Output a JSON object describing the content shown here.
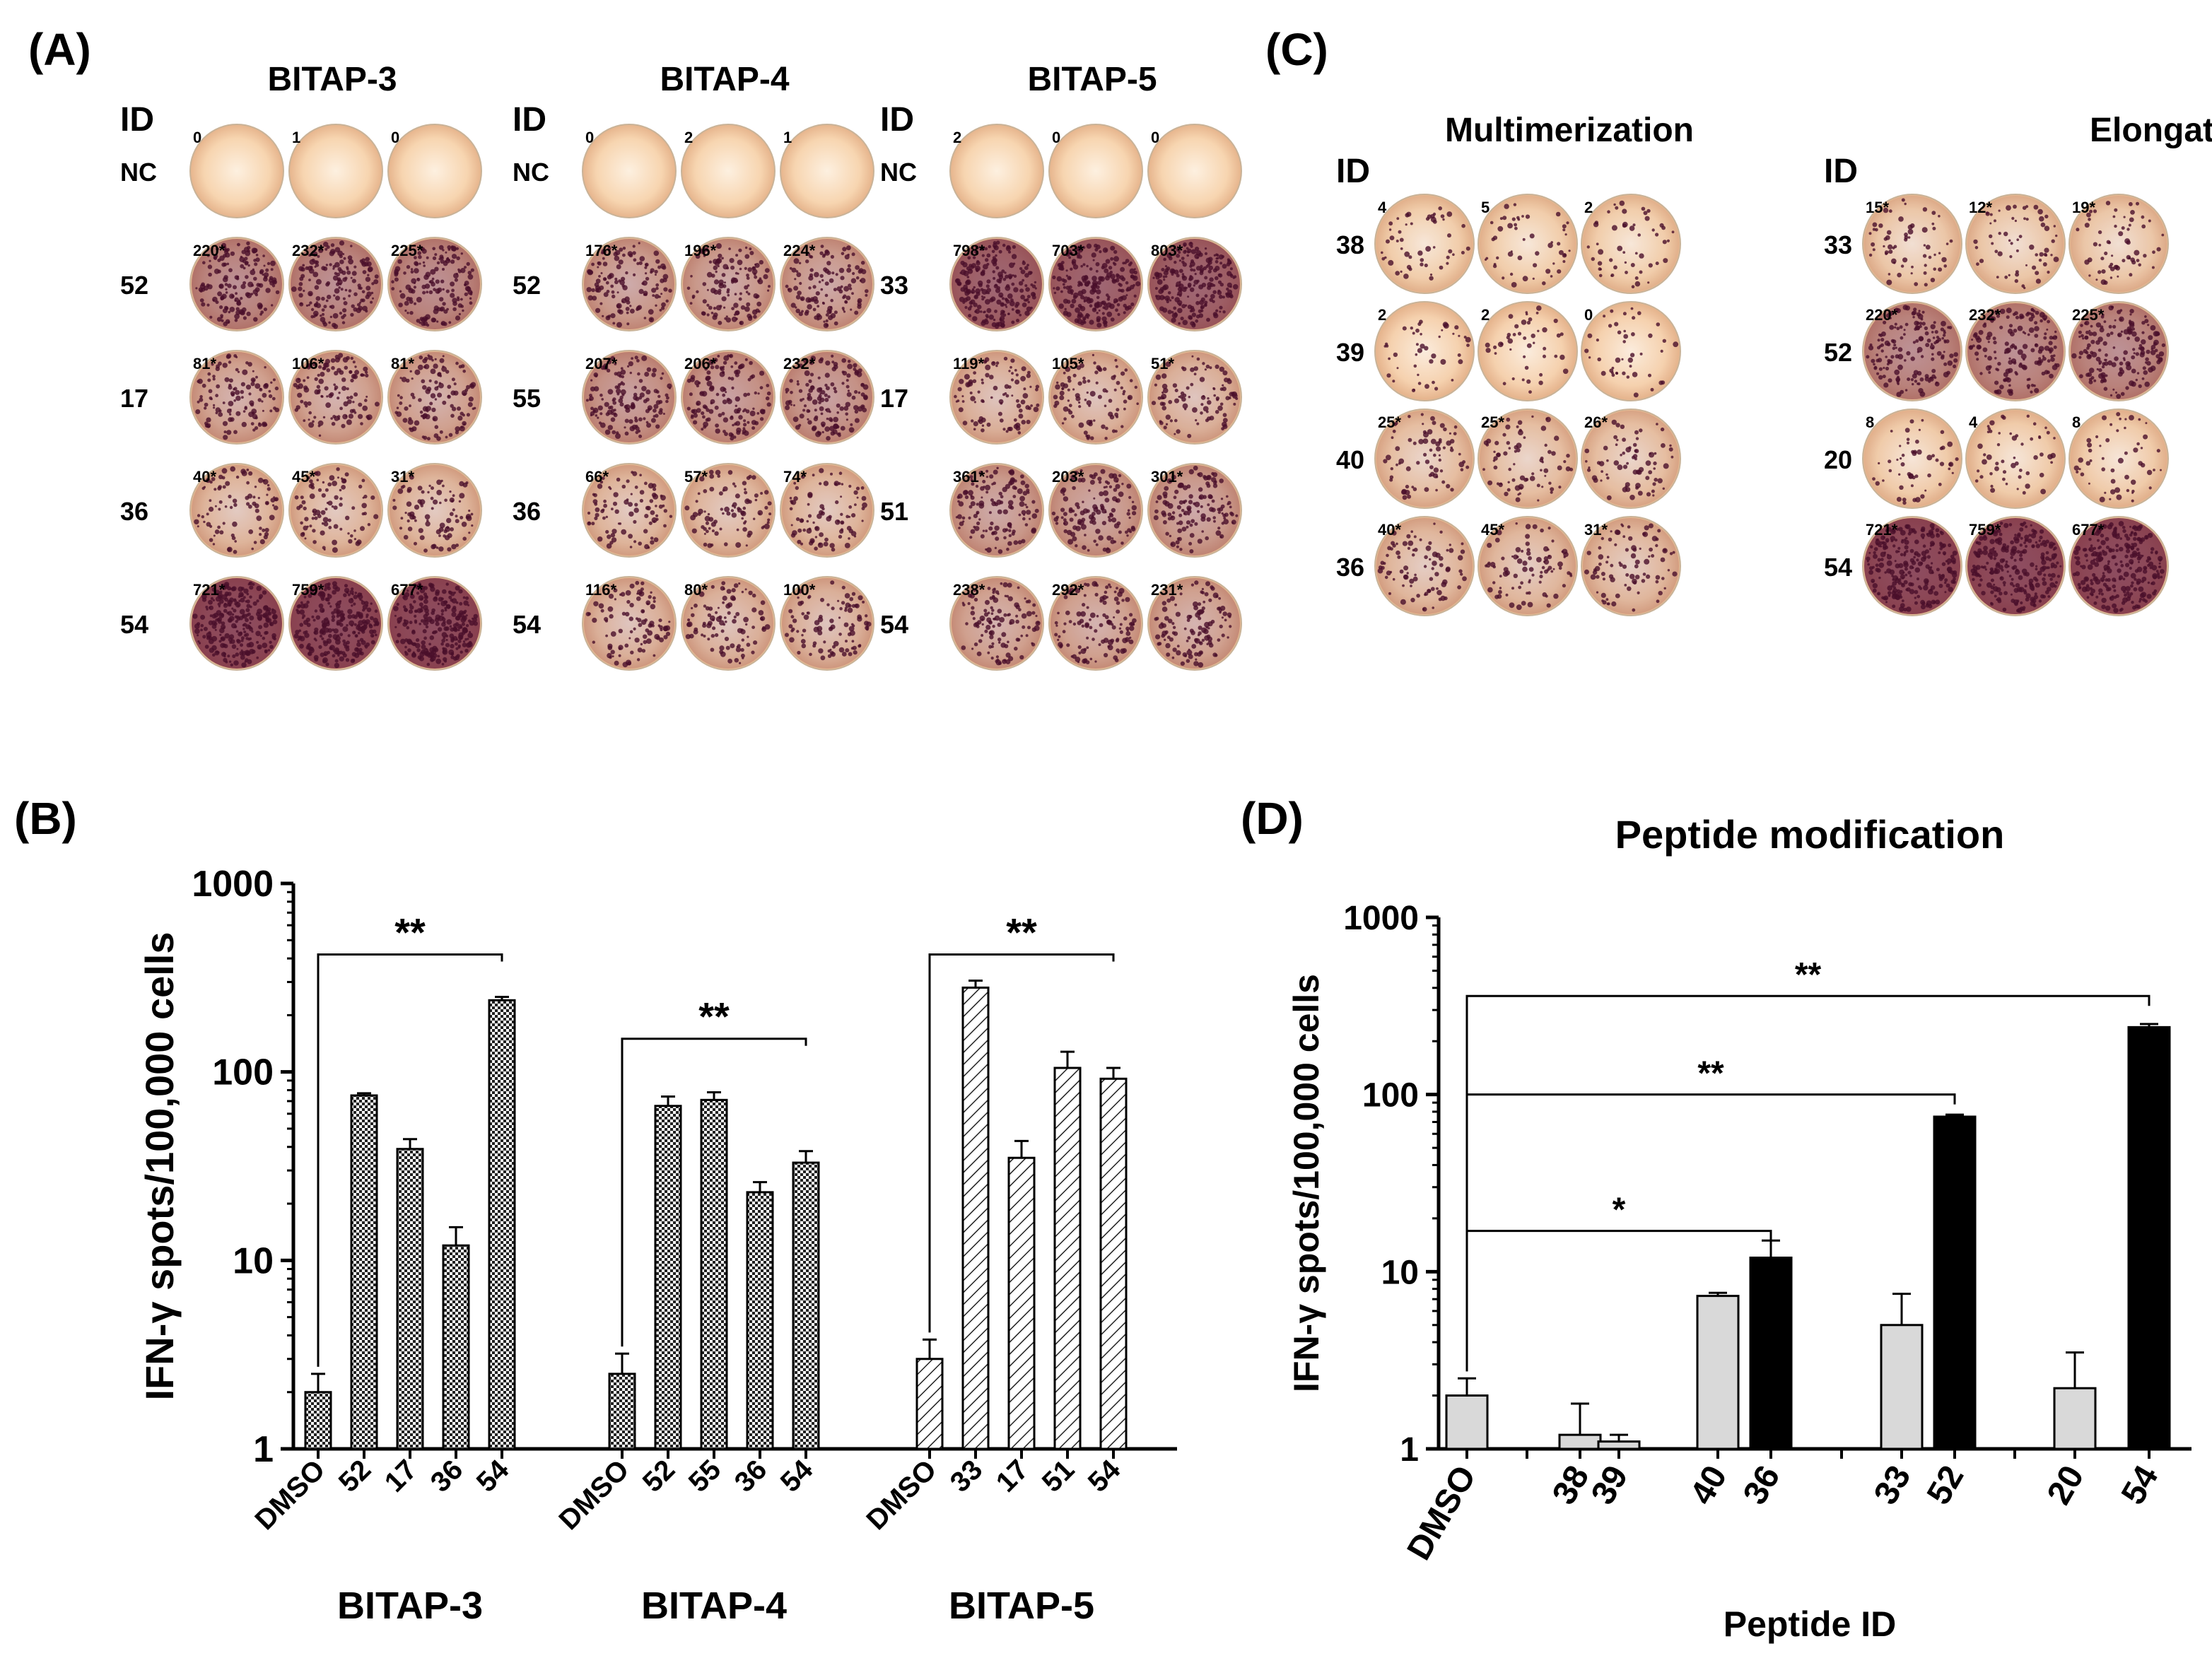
{
  "panels": {
    "A": {
      "label": "(A)",
      "groups": [
        {
          "title": "BITAP-3",
          "id_header": "ID",
          "rows": [
            {
              "id": "NC",
              "counts": [
                "0",
                "1",
                "0"
              ],
              "intensity": 0
            },
            {
              "id": "52",
              "counts": [
                "220*",
                "232*",
                "225*"
              ],
              "intensity": 0.55
            },
            {
              "id": "17",
              "counts": [
                "81*",
                "106*",
                "81*"
              ],
              "intensity": 0.35
            },
            {
              "id": "36",
              "counts": [
                "40*",
                "45*",
                "31*"
              ],
              "intensity": 0.22
            },
            {
              "id": "54",
              "counts": [
                "721*",
                "759*",
                "677*"
              ],
              "intensity": 0.95
            }
          ]
        },
        {
          "title": "BITAP-4",
          "id_header": "ID",
          "rows": [
            {
              "id": "NC",
              "counts": [
                "0",
                "2",
                "1"
              ],
              "intensity": 0
            },
            {
              "id": "52",
              "counts": [
                "176*",
                "196*",
                "224*"
              ],
              "intensity": 0.4
            },
            {
              "id": "55",
              "counts": [
                "207*",
                "206*",
                "232*"
              ],
              "intensity": 0.45
            },
            {
              "id": "36",
              "counts": [
                "66*",
                "57*",
                "74*"
              ],
              "intensity": 0.22
            },
            {
              "id": "54",
              "counts": [
                "116*",
                "80*",
                "100*"
              ],
              "intensity": 0.25
            }
          ]
        },
        {
          "title": "BITAP-5",
          "id_header": "ID",
          "rows": [
            {
              "id": "NC",
              "counts": [
                "2",
                "0",
                "0"
              ],
              "intensity": 0
            },
            {
              "id": "33",
              "counts": [
                "798*",
                "703*",
                "803*"
              ],
              "intensity": 0.8
            },
            {
              "id": "17",
              "counts": [
                "119*",
                "105*",
                "51*"
              ],
              "intensity": 0.25
            },
            {
              "id": "51",
              "counts": [
                "361*",
                "203*",
                "301*"
              ],
              "intensity": 0.4
            },
            {
              "id": "54",
              "counts": [
                "238*",
                "292*",
                "231*"
              ],
              "intensity": 0.35
            }
          ]
        }
      ]
    },
    "C": {
      "label": "(C)",
      "groups": [
        {
          "title": "Multimerization",
          "id_header": "ID",
          "rows": [
            {
              "id": "38",
              "counts": [
                "4",
                "5",
                "2"
              ],
              "intensity": 0.05
            },
            {
              "id": "39",
              "counts": [
                "2",
                "2",
                "0"
              ],
              "intensity": 0.02
            },
            {
              "id": "40",
              "counts": [
                "25*",
                "25*",
                "26*"
              ],
              "intensity": 0.15
            },
            {
              "id": "36",
              "counts": [
                "40*",
                "45*",
                "31*"
              ],
              "intensity": 0.2
            }
          ]
        },
        {
          "title": "Elongation",
          "id_header": "ID",
          "rows": [
            {
              "id": "33",
              "counts": [
                "15*",
                "12*",
                "19*"
              ],
              "intensity": 0.1
            },
            {
              "id": "52",
              "counts": [
                "220*",
                "232*",
                "225*"
              ],
              "intensity": 0.55
            },
            {
              "id": "20",
              "counts": [
                "8",
                "4",
                "8"
              ],
              "intensity": 0.06
            },
            {
              "id": "54",
              "counts": [
                "721*",
                "759*",
                "677*"
              ],
              "intensity": 0.95
            }
          ]
        }
      ]
    },
    "B": {
      "label": "(B)"
    },
    "D": {
      "label": "(D)"
    }
  },
  "colors": {
    "well_bg": "#f6cfa8",
    "spot": "#6b1a3a",
    "bar_light": "#d9d9d9",
    "bar_dark": "#000000"
  },
  "chart_data": [
    {
      "panel": "B",
      "type": "bar",
      "ylabel": "IFN-γ spots/100,000 cells",
      "yscale": "log",
      "ylim": [
        1,
        1000
      ],
      "yticks": [
        "1",
        "10",
        "100",
        "1000"
      ],
      "groups": [
        {
          "name": "BITAP-3",
          "pattern": "checker",
          "categories": [
            "DMSO",
            "52",
            "17",
            "36",
            "54"
          ],
          "values": [
            2,
            75,
            39,
            12,
            240
          ],
          "errors": [
            2.5,
            77,
            44,
            15,
            250
          ]
        },
        {
          "name": "BITAP-4",
          "pattern": "checker",
          "categories": [
            "DMSO",
            "52",
            "55",
            "36",
            "54"
          ],
          "values": [
            2.5,
            66,
            71,
            23,
            33
          ],
          "errors": [
            3.2,
            74,
            78,
            26,
            38
          ]
        },
        {
          "name": "BITAP-5",
          "pattern": "diagonal",
          "categories": [
            "DMSO",
            "33",
            "17",
            "51",
            "54"
          ],
          "values": [
            3,
            280,
            35,
            105,
            92
          ],
          "errors": [
            3.8,
            305,
            43,
            128,
            105
          ]
        }
      ],
      "significance": [
        {
          "group": 0,
          "label": "**",
          "y": 420
        },
        {
          "group": 1,
          "label": "**",
          "y": 150
        },
        {
          "group": 2,
          "label": "**",
          "y": 420
        }
      ]
    },
    {
      "panel": "D",
      "type": "bar",
      "title": "Peptide modification",
      "xlabel": "Peptide ID",
      "ylabel": "IFN-γ spots/100,000 cells",
      "yscale": "log",
      "ylim": [
        1,
        1000
      ],
      "yticks": [
        "1",
        "10",
        "100",
        "1000"
      ],
      "categories": [
        "DMSO",
        "38",
        "39",
        "40",
        "36",
        "33",
        "52",
        "20",
        "54"
      ],
      "values": [
        2,
        1.2,
        1.1,
        7.3,
        12,
        5,
        75,
        2.2,
        240
      ],
      "errors": [
        2.5,
        1.8,
        1.2,
        7.6,
        15,
        7.5,
        77,
        3.5,
        250
      ],
      "colors": [
        "light",
        "light",
        "light",
        "light",
        "dark",
        "light",
        "dark",
        "light",
        "dark"
      ],
      "significance": [
        {
          "from": 0,
          "to": 8,
          "label": "**",
          "y": 360
        },
        {
          "from": 0,
          "to": 6,
          "label": "**",
          "y": 100
        },
        {
          "from": 0,
          "to": 4,
          "label": "*",
          "y": 17
        }
      ]
    }
  ]
}
